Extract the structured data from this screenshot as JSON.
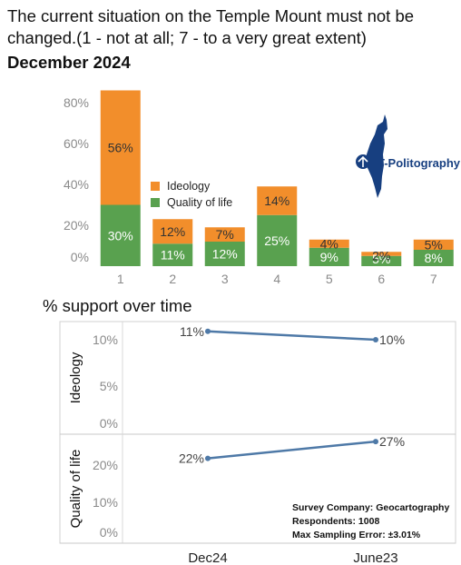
{
  "title": "The current situation on the Temple Mount must not be changed.(1 - not at all; 7 - to a very great extent)",
  "subtitle": "December 2024",
  "section_title": "% support over time",
  "logo_text": "T-Politography",
  "survey": {
    "company": "Survey Company: Geocartography",
    "respondents": "Respondents: 1008",
    "error": "Max Sampling Error: ±3.01%"
  },
  "colors": {
    "ideology": "#f28e2b",
    "quality": "#59a14f",
    "line": "#4e79a7",
    "brand": "#173f80"
  },
  "chart_data": [
    {
      "type": "bar",
      "stacked": true,
      "categories": [
        "1",
        "2",
        "3",
        "4",
        "5",
        "6",
        "7"
      ],
      "series": [
        {
          "name": "Quality of life",
          "values": [
            30,
            11,
            12,
            25,
            9,
            5,
            8
          ],
          "labels": [
            "30%",
            "11%",
            "12%",
            "25%",
            "9%",
            "5%",
            "8%"
          ]
        },
        {
          "name": "Ideology",
          "values": [
            56,
            12,
            7,
            14,
            4,
            2,
            5
          ],
          "labels": [
            "56%",
            "12%",
            "7%",
            "14%",
            "4%",
            "2%",
            "5%"
          ]
        }
      ],
      "yticks": [
        "0%",
        "20%",
        "40%",
        "60%",
        "80%"
      ],
      "ylim": [
        0,
        86
      ],
      "legend": "center"
    },
    {
      "type": "line",
      "categories": [
        "Dec24",
        "June23"
      ],
      "panels": [
        {
          "name": "Ideology",
          "values": [
            11,
            10
          ],
          "labels": [
            "11%",
            "10%"
          ],
          "yticks": [
            "0%",
            "5%",
            "10%"
          ],
          "ylim": [
            0,
            11
          ]
        },
        {
          "name": "Quality of life",
          "values": [
            22,
            27
          ],
          "labels": [
            "22%",
            "27%"
          ],
          "yticks": [
            "0%",
            "10%",
            "20%"
          ],
          "ylim": [
            0,
            27
          ]
        }
      ]
    }
  ]
}
